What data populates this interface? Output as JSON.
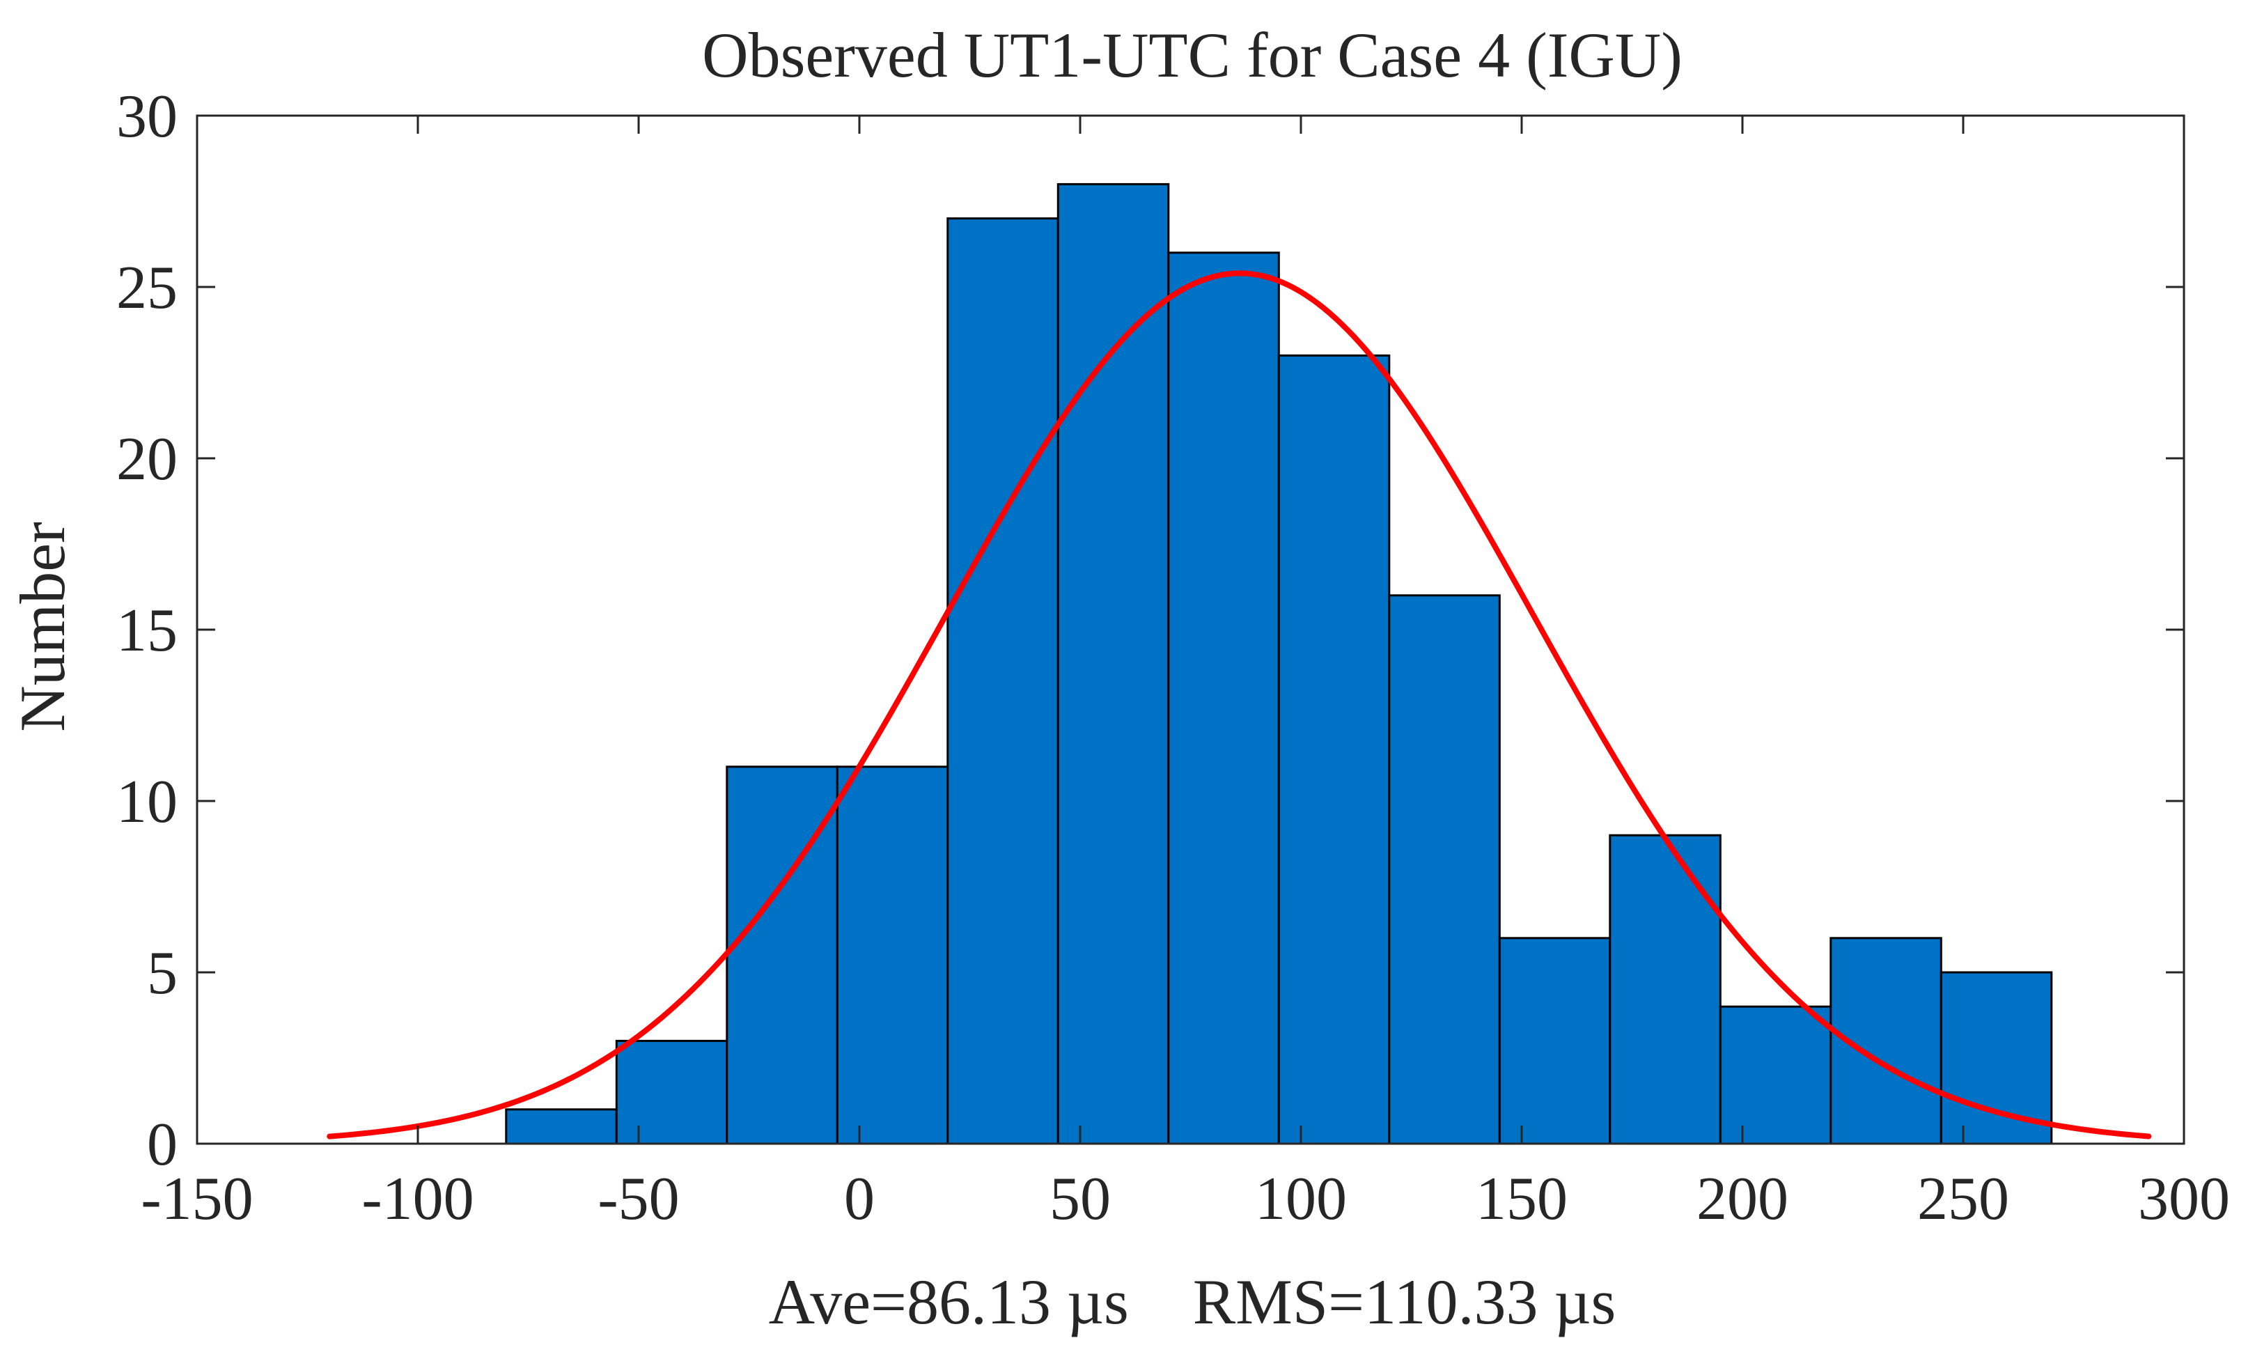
{
  "chart_data": {
    "type": "bar",
    "title": "Observed UT1-UTC for Case 4 (IGU)",
    "xlabel": "Ave=86.13 µs    RMS=110.33 µs",
    "ylabel": "Number",
    "xlim": [
      -150,
      300
    ],
    "ylim": [
      0,
      30
    ],
    "x_ticks": [
      -150,
      -100,
      -50,
      0,
      50,
      100,
      150,
      200,
      250,
      300
    ],
    "y_ticks": [
      0,
      5,
      10,
      15,
      20,
      25,
      30
    ],
    "grid": false,
    "series": [
      {
        "name": "histogram",
        "bin_edges": [
          -80,
          -55,
          -30,
          -5,
          20,
          45,
          70,
          95,
          120,
          145,
          170,
          195,
          220,
          245,
          270
        ],
        "counts": [
          1,
          3,
          11,
          11,
          27,
          28,
          26,
          23,
          16,
          6,
          9,
          4,
          6,
          5
        ],
        "color": "#0072C6"
      },
      {
        "name": "normal fit",
        "type": "line",
        "x_range": [
          -120,
          292
        ],
        "mean": 86.13,
        "peak": 25.4,
        "sigma": 66.6,
        "color": "#FF0000"
      }
    ]
  }
}
